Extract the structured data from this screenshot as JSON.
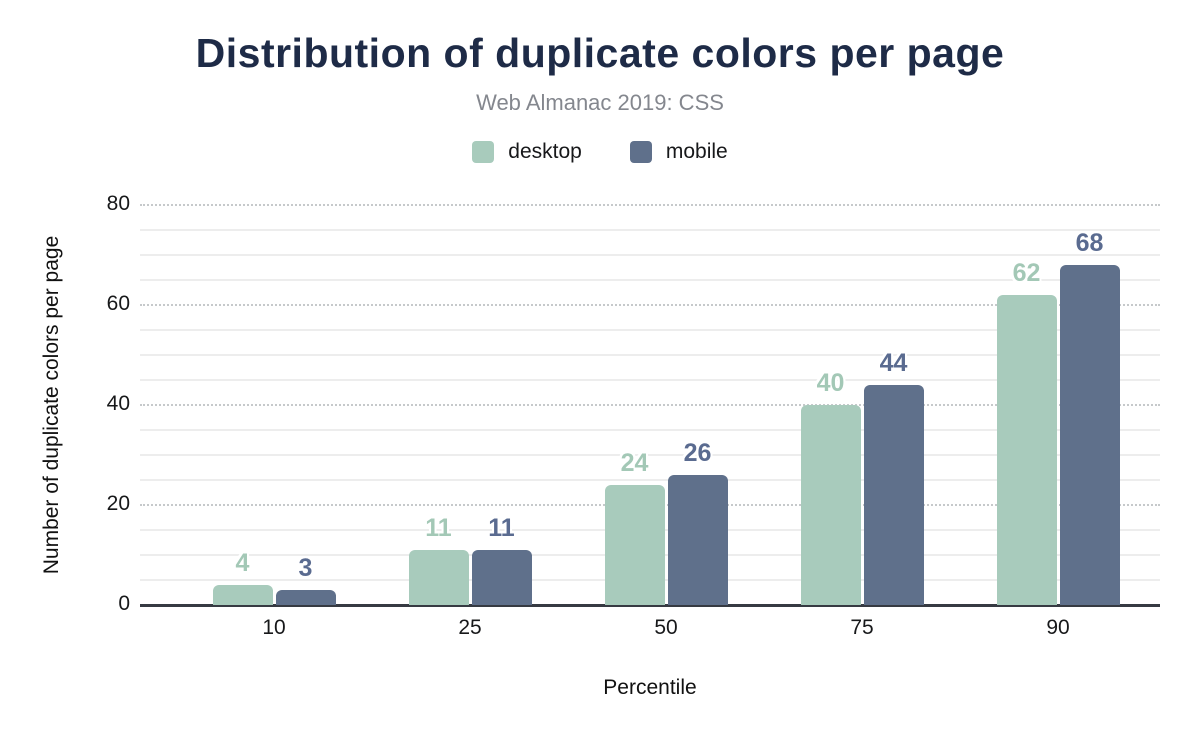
{
  "chart_data": {
    "type": "bar",
    "title": "Distribution of duplicate colors per page",
    "subtitle": "Web Almanac 2019: CSS",
    "categories": [
      "10",
      "25",
      "50",
      "75",
      "90"
    ],
    "series": [
      {
        "name": "desktop",
        "color": "#a8cbbc",
        "label_color": "#a3c8b6",
        "values": [
          4,
          11,
          24,
          40,
          62
        ]
      },
      {
        "name": "mobile",
        "color": "#5f708b",
        "label_color": "#5a6b90",
        "values": [
          3,
          11,
          26,
          44,
          68
        ]
      }
    ],
    "xlabel": "Percentile",
    "ylabel": "Number of duplicate colors per page",
    "ylim": [
      0,
      80
    ],
    "yticks": [
      0,
      20,
      40,
      60,
      80
    ],
    "y_minor_step": 5,
    "grid": "horizontal-major-and-minor",
    "legend_position": "top"
  },
  "colors": {
    "title_text": "#1e2b47",
    "subtitle_text": "#84878e",
    "axis_line": "#363a42",
    "grid_major": "#c6c9cb",
    "grid_minor": "#ededed"
  }
}
